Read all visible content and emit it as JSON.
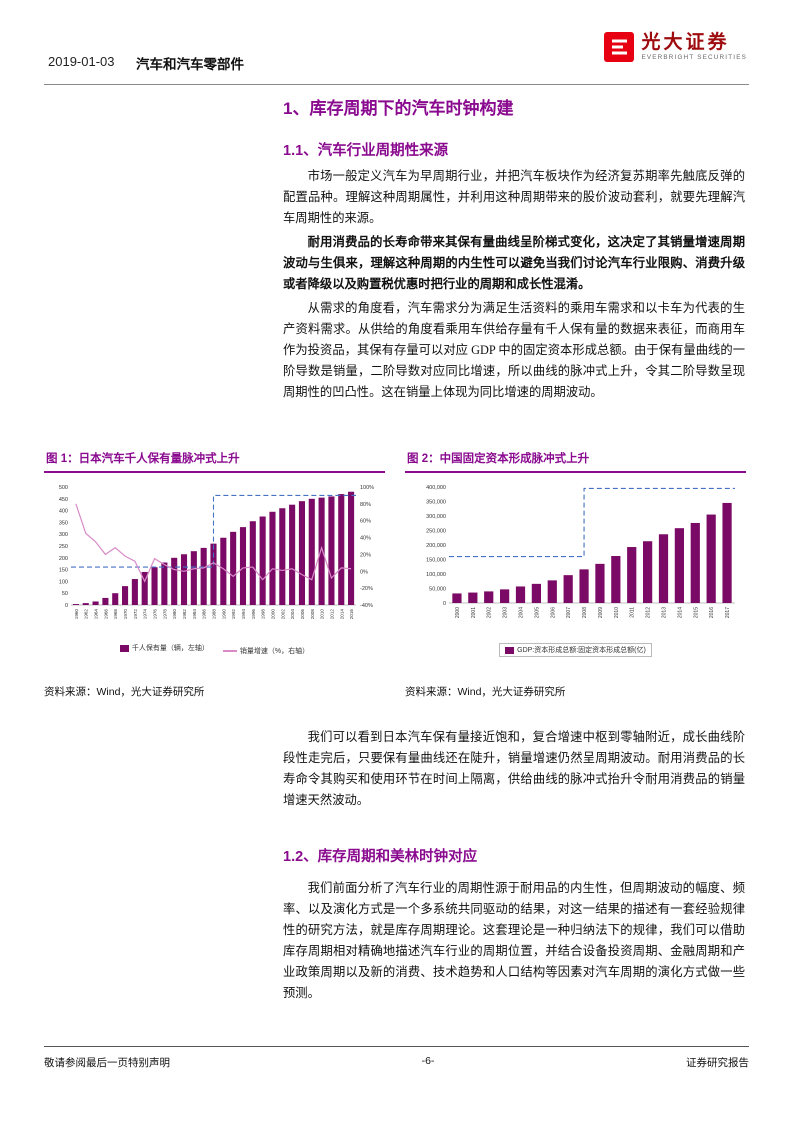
{
  "colors": {
    "accent_purple": "#8A0A8F",
    "bar_purple": "#7A0A66",
    "line_pink": "#D98BC8",
    "dashed_blue": "#4472C4",
    "logo_red": "#E60012",
    "brand_text_red": "#9E0B0F"
  },
  "header": {
    "date": "2019-01-03",
    "category": "汽车和汽车零部件",
    "brand_name": "光大证券",
    "brand_subtitle": "EVERBRIGHT SECURITIES"
  },
  "content": {
    "section1_title": "1、库存周期下的汽车时钟构建",
    "section11_title": "1.1、汽车行业周期性来源",
    "p1": "市场一般定义汽车为早周期行业，并把汽车板块作为经济复苏期率先触底反弹的配置品种。理解这种周期属性，并利用这种周期带来的股价波动套利，就要先理解汽车周期性的来源。",
    "p2": "耐用消费品的长寿命带来其保有量曲线呈阶梯式变化，这决定了其销量增速周期波动与生俱来，理解这种周期的内生性可以避免当我们讨论汽车行业限购、消费升级或者降级以及购置税优惠时把行业的周期和成长性混淆。",
    "p3": "从需求的角度看，汽车需求分为满足生活资料的乘用车需求和以卡车为代表的生产资料需求。从供给的角度看乘用车供给存量有千人保有量的数据来表征，而商用车作为投资品，其保有存量可以对应 GDP 中的固定资本形成总额。由于保有量曲线的一阶导数是销量，二阶导数对应同比增速，所以曲线的脉冲式上升，令其二阶导数呈现周期性的凹凸性。这在销量上体现为同比增速的周期波动。",
    "p4": "我们可以看到日本汽车保有量接近饱和，复合增速中枢到零轴附近，成长曲线阶段性走完后，只要保有量曲线还在陡升，销量增速仍然呈周期波动。耐用消费品的长寿命令其购买和使用环节在时间上隔离，供给曲线的脉冲式抬升令耐用消费品的销量增速天然波动。",
    "section12_title": "1.2、库存周期和美林时钟对应",
    "p5": "我们前面分析了汽车行业的周期性源于耐用品的内生性，但周期波动的幅度、频率、以及演化方式是一个多系统共同驱动的结果，对这一结果的描述有一套经验规律性的研究方法，就是库存周期理论。这套理论是一种归纳法下的规律，我们可以借助库存周期相对精确地描述汽车行业的周期位置，并结合设备投资周期、金融周期和产业政策周期以及新的消费、技术趋势和人口结构等因素对汽车周期的演化方式做一些预测。"
  },
  "figures": [
    {
      "title": "图 1：日本汽车千人保有量脉冲式上升",
      "source": "资料来源：Wind，光大证券研究所",
      "legend": [
        "千人保有量（辆，左轴）",
        "销量增速（%，右轴）"
      ]
    },
    {
      "title": "图 2：中国固定资本形成脉冲式上升",
      "source": "资料来源：Wind，光大证券研究所",
      "legend": [
        "GDP:资本形成总额:固定资本形成总额(亿)"
      ]
    }
  ],
  "footer": {
    "left": "敬请参阅最后一页特别声明",
    "page": "-6-",
    "right": "证券研究报告"
  },
  "chart_data": [
    {
      "type": "bar",
      "title": "日本汽车千人保有量脉冲式上升",
      "x": [
        1960,
        1962,
        1964,
        1966,
        1968,
        1970,
        1972,
        1974,
        1976,
        1978,
        1980,
        1982,
        1984,
        1986,
        1988,
        1990,
        1992,
        1994,
        1996,
        1998,
        2000,
        2002,
        2004,
        2006,
        2008,
        2010,
        2012,
        2014,
        2016
      ],
      "series": [
        {
          "name": "千人保有量（辆，左轴）",
          "type": "bar",
          "axis": "left",
          "values": [
            4,
            8,
            15,
            30,
            50,
            80,
            110,
            140,
            160,
            180,
            200,
            215,
            228,
            242,
            260,
            285,
            310,
            330,
            355,
            375,
            395,
            410,
            425,
            440,
            450,
            455,
            460,
            470,
            480
          ]
        },
        {
          "name": "销量增速（%，右轴）",
          "type": "line",
          "axis": "right",
          "values": [
            80,
            45,
            35,
            20,
            28,
            18,
            12,
            -12,
            15,
            8,
            2,
            0,
            3,
            4,
            10,
            3,
            -6,
            4,
            5,
            -10,
            3,
            1,
            3,
            -4,
            -10,
            28,
            -8,
            4,
            3
          ]
        }
      ],
      "left_axis": {
        "min": 0,
        "max": 500,
        "step": 50
      },
      "right_axis": {
        "min": -40,
        "max": 100,
        "step": 20,
        "suffix": "%"
      },
      "annotation_step_line": {
        "axis": "right",
        "low": 5,
        "high": 90,
        "step_at": 1988
      },
      "grid": false,
      "legend_position": "bottom"
    },
    {
      "type": "bar",
      "title": "中国固定资本形成脉冲式上升",
      "categories": [
        2000,
        2001,
        2002,
        2003,
        2004,
        2005,
        2006,
        2007,
        2008,
        2009,
        2010,
        2011,
        2012,
        2013,
        2014,
        2015,
        2016,
        2017
      ],
      "values": [
        33000,
        36000,
        40000,
        47000,
        57000,
        66000,
        78000,
        96000,
        116000,
        135000,
        162000,
        193000,
        213000,
        237000,
        258000,
        276000,
        305000,
        345000
      ],
      "ylim": [
        0,
        400000
      ],
      "ytick_step": 50000,
      "legend": "GDP:资本形成总额:固定资本形成总额(亿)",
      "annotation_step_line": {
        "low": 160000,
        "high": 395000,
        "step_at": 2008
      },
      "grid": false,
      "legend_position": "bottom"
    }
  ]
}
